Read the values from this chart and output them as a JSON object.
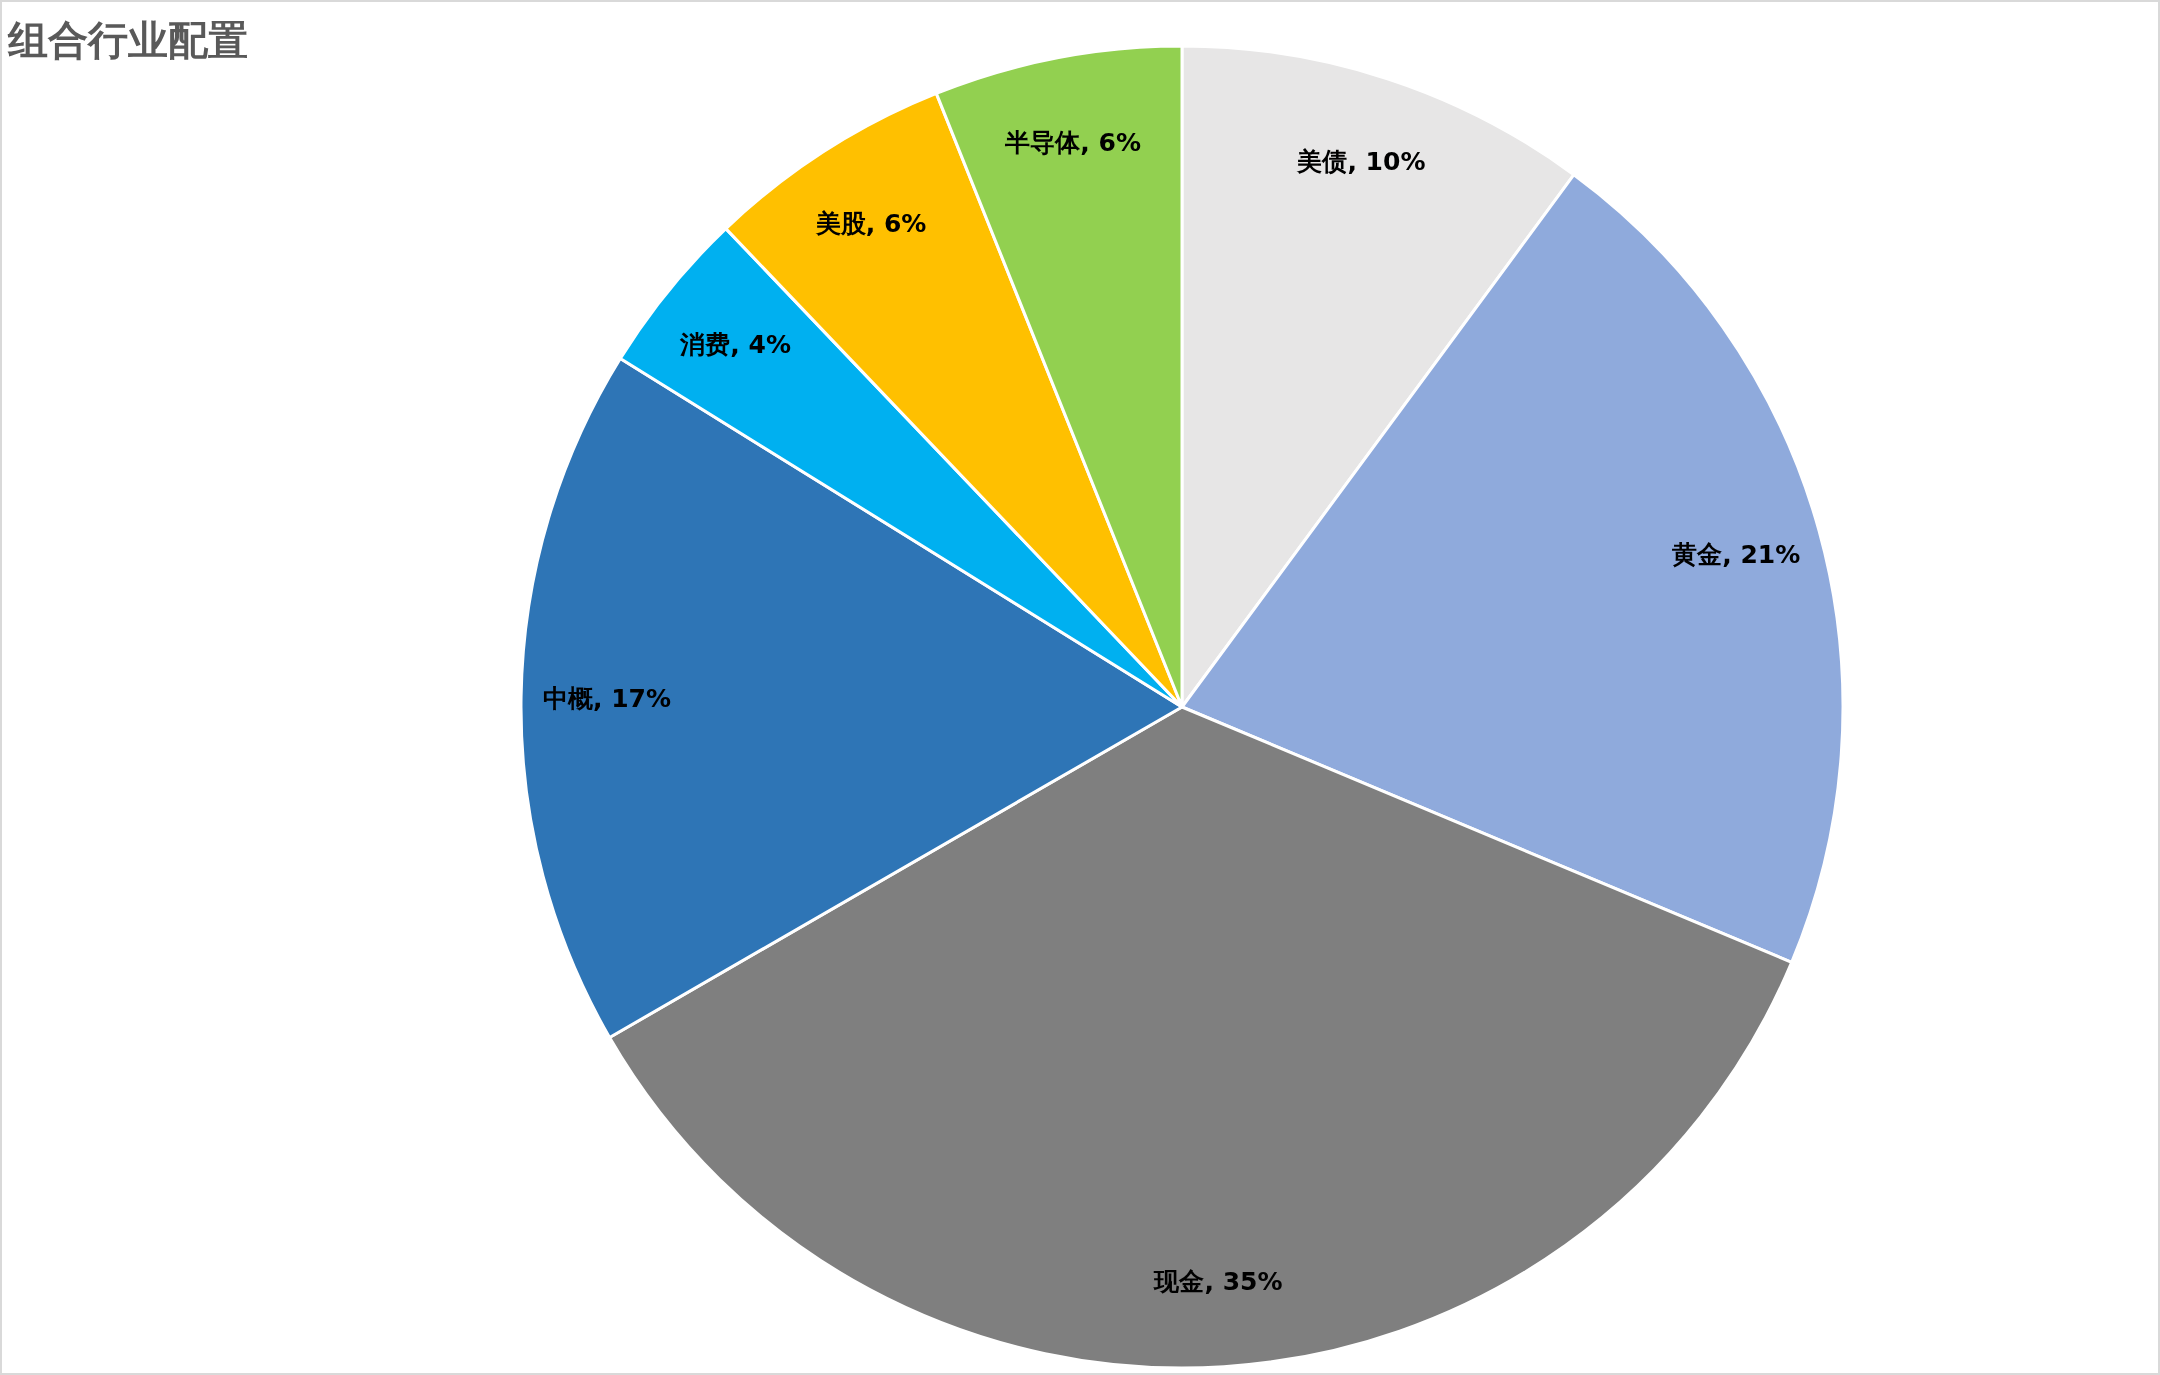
{
  "chart_data": {
    "type": "pie",
    "title": "组合行业配置",
    "categories": [
      "美债",
      "黄金",
      "现金",
      "中概",
      "消费",
      "美股",
      "半导体"
    ],
    "values": [
      10,
      21,
      35,
      17,
      4,
      6,
      6
    ],
    "value_labels": [
      "10%",
      "21%",
      "35%",
      "17%",
      "4%",
      "6%",
      "6%"
    ],
    "colors": [
      "#e7e6e6",
      "#8faadc",
      "#7f7f7f",
      "#2e75b6",
      "#00b0f0",
      "#ffc000",
      "#92d050"
    ],
    "legend": false
  }
}
